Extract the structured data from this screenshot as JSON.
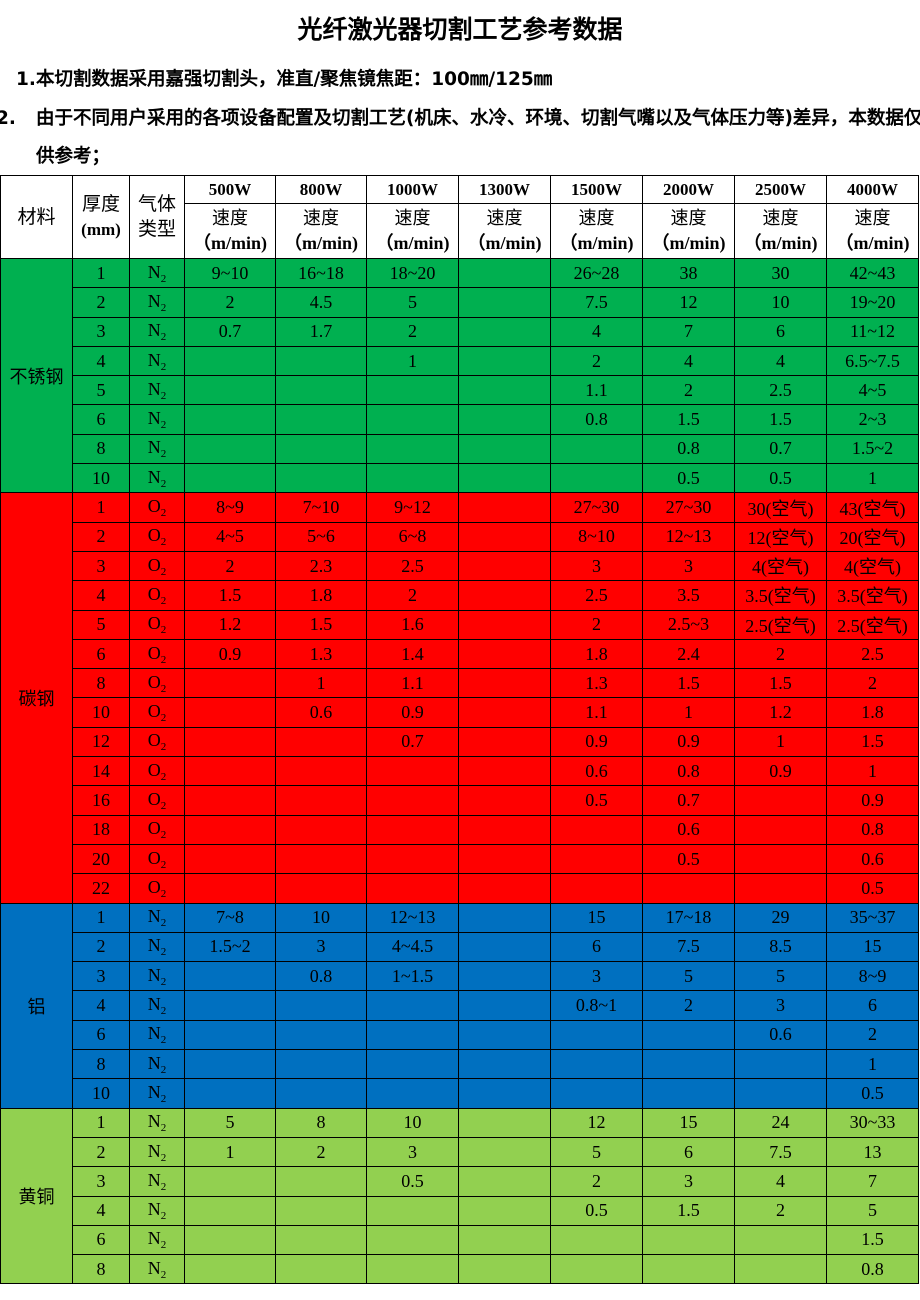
{
  "title": "光纤激光器切割工艺参考数据",
  "notes": [
    {
      "num": "1.",
      "text": "本切割数据采用嘉强切割头，准直/聚焦镜焦距：100㎜/125㎜"
    },
    {
      "num": "2.",
      "text": "由于不同用户采用的各项设备配置及切割工艺(机床、水冷、环境、切割气嘴以及气体压力等)差异，本数据仅供参考；"
    }
  ],
  "table": {
    "headers": {
      "material": "材料",
      "thickness": "厚度",
      "thickness_unit": "(mm)",
      "gas_1": "气体",
      "gas_2": "类型",
      "speed": "速度",
      "speed_unit": "（m/min)",
      "powers": [
        "500W",
        "800W",
        "1000W",
        "1300W",
        "1500W",
        "2000W",
        "2500W",
        "4000W"
      ]
    },
    "materials": [
      {
        "name": "不锈钢",
        "gas": "N",
        "gas_sub": "2",
        "color": "#00b050",
        "rows": [
          {
            "t": "1",
            "s": [
              "9~10",
              "16~18",
              "18~20",
              "",
              "26~28",
              "38",
              "30",
              "42~43"
            ]
          },
          {
            "t": "2",
            "s": [
              "2",
              "4.5",
              "5",
              "",
              "7.5",
              "12",
              "10",
              "19~20"
            ]
          },
          {
            "t": "3",
            "s": [
              "0.7",
              "1.7",
              "2",
              "",
              "4",
              "7",
              "6",
              "11~12"
            ]
          },
          {
            "t": "4",
            "s": [
              "",
              "",
              "1",
              "",
              "2",
              "4",
              "4",
              "6.5~7.5"
            ]
          },
          {
            "t": "5",
            "s": [
              "",
              "",
              "",
              "",
              "1.1",
              "2",
              "2.5",
              "4~5"
            ]
          },
          {
            "t": "6",
            "s": [
              "",
              "",
              "",
              "",
              "0.8",
              "1.5",
              "1.5",
              "2~3"
            ]
          },
          {
            "t": "8",
            "s": [
              "",
              "",
              "",
              "",
              "",
              "0.8",
              "0.7",
              "1.5~2"
            ]
          },
          {
            "t": "10",
            "s": [
              "",
              "",
              "",
              "",
              "",
              "0.5",
              "0.5",
              "1"
            ]
          }
        ]
      },
      {
        "name": "碳钢",
        "gas": "O",
        "gas_sub": "2",
        "color": "#ff0000",
        "rows": [
          {
            "t": "1",
            "s": [
              "8~9",
              "7~10",
              "9~12",
              "",
              "27~30",
              "27~30",
              "30(空气)",
              "43(空气)"
            ]
          },
          {
            "t": "2",
            "s": [
              "4~5",
              "5~6",
              "6~8",
              "",
              "8~10",
              "12~13",
              "12(空气)",
              "20(空气)"
            ]
          },
          {
            "t": "3",
            "s": [
              "2",
              "2.3",
              "2.5",
              "",
              "3",
              "3",
              "4(空气)",
              "4(空气)"
            ]
          },
          {
            "t": "4",
            "s": [
              "1.5",
              "1.8",
              "2",
              "",
              "2.5",
              "3.5",
              "3.5(空气)",
              "3.5(空气)"
            ]
          },
          {
            "t": "5",
            "s": [
              "1.2",
              "1.5",
              "1.6",
              "",
              "2",
              "2.5~3",
              "2.5(空气)",
              "2.5(空气)"
            ]
          },
          {
            "t": "6",
            "s": [
              "0.9",
              "1.3",
              "1.4",
              "",
              "1.8",
              "2.4",
              "2",
              "2.5"
            ]
          },
          {
            "t": "8",
            "s": [
              "",
              "1",
              "1.1",
              "",
              "1.3",
              "1.5",
              "1.5",
              "2"
            ]
          },
          {
            "t": "10",
            "s": [
              "",
              "0.6",
              "0.9",
              "",
              "1.1",
              "1",
              "1.2",
              "1.8"
            ]
          },
          {
            "t": "12",
            "s": [
              "",
              "",
              "0.7",
              "",
              "0.9",
              "0.9",
              "1",
              "1.5"
            ]
          },
          {
            "t": "14",
            "s": [
              "",
              "",
              "",
              "",
              "0.6",
              "0.8",
              "0.9",
              "1"
            ]
          },
          {
            "t": "16",
            "s": [
              "",
              "",
              "",
              "",
              "0.5",
              "0.7",
              "",
              "0.9"
            ]
          },
          {
            "t": "18",
            "s": [
              "",
              "",
              "",
              "",
              "",
              "0.6",
              "",
              "0.8"
            ]
          },
          {
            "t": "20",
            "s": [
              "",
              "",
              "",
              "",
              "",
              "0.5",
              "",
              "0.6"
            ]
          },
          {
            "t": "22",
            "s": [
              "",
              "",
              "",
              "",
              "",
              "",
              "",
              "0.5"
            ]
          }
        ]
      },
      {
        "name": "铝",
        "gas": "N",
        "gas_sub": "2",
        "color": "#0070c0",
        "rows": [
          {
            "t": "1",
            "s": [
              "7~8",
              "10",
              "12~13",
              "",
              "15",
              "17~18",
              "29",
              "35~37"
            ]
          },
          {
            "t": "2",
            "s": [
              "1.5~2",
              "3",
              "4~4.5",
              "",
              "6",
              "7.5",
              "8.5",
              "15"
            ]
          },
          {
            "t": "3",
            "s": [
              "",
              "0.8",
              "1~1.5",
              "",
              "3",
              "5",
              "5",
              "8~9"
            ]
          },
          {
            "t": "4",
            "s": [
              "",
              "",
              "",
              "",
              "0.8~1",
              "2",
              "3",
              "6"
            ]
          },
          {
            "t": "6",
            "s": [
              "",
              "",
              "",
              "",
              "",
              "",
              "0.6",
              "2"
            ]
          },
          {
            "t": "8",
            "s": [
              "",
              "",
              "",
              "",
              "",
              "",
              "",
              "1"
            ]
          },
          {
            "t": "10",
            "s": [
              "",
              "",
              "",
              "",
              "",
              "",
              "",
              "0.5"
            ]
          }
        ]
      },
      {
        "name": "黄铜",
        "gas": "N",
        "gas_sub": "2",
        "color": "#92d050",
        "rows": [
          {
            "t": "1",
            "s": [
              "5",
              "8",
              "10",
              "",
              "12",
              "15",
              "24",
              "30~33"
            ]
          },
          {
            "t": "2",
            "s": [
              "1",
              "2",
              "3",
              "",
              "5",
              "6",
              "7.5",
              "13"
            ]
          },
          {
            "t": "3",
            "s": [
              "",
              "",
              "0.5",
              "",
              "2",
              "3",
              "4",
              "7"
            ]
          },
          {
            "t": "4",
            "s": [
              "",
              "",
              "",
              "",
              "0.5",
              "1.5",
              "2",
              "5"
            ]
          },
          {
            "t": "6",
            "s": [
              "",
              "",
              "",
              "",
              "",
              "",
              "",
              "1.5"
            ]
          },
          {
            "t": "8",
            "s": [
              "",
              "",
              "",
              "",
              "",
              "",
              "",
              "0.8"
            ]
          }
        ]
      }
    ]
  }
}
